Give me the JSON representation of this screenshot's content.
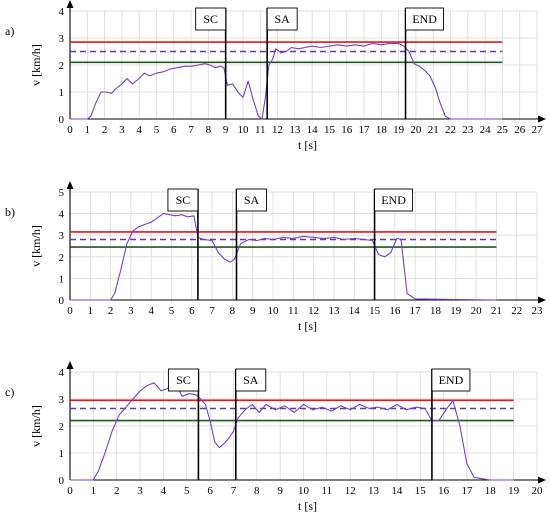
{
  "chart_data": [
    {
      "type": "line",
      "panel_label": "a)",
      "ylabel": "v [km/h]",
      "xlabel": "t [s]",
      "xlim": [
        0,
        27
      ],
      "ylim": [
        0,
        4
      ],
      "xticks": [
        "0",
        "1",
        "2",
        "3",
        "4",
        "5",
        "6",
        "7",
        "8",
        "9",
        "10",
        "11",
        "12",
        "13",
        "14",
        "15",
        "16",
        "17",
        "18",
        "19",
        "20",
        "21",
        "22",
        "23",
        "24",
        "25",
        "26",
        "27"
      ],
      "yticks": [
        "0",
        "1",
        "2",
        "3",
        "4"
      ],
      "grid": true,
      "hlines": [
        {
          "y": 2.85,
          "x_end": 25,
          "color": "#e8151b",
          "style": "solid"
        },
        {
          "y": 2.5,
          "x_end": 25,
          "color": "#5a3ea8",
          "style": "dashed"
        },
        {
          "y": 2.1,
          "x_end": 25,
          "color": "#1f5c19",
          "style": "solid"
        }
      ],
      "markers": [
        {
          "label": "SC",
          "x": 9.0
        },
        {
          "label": "SA",
          "x": 11.4
        },
        {
          "label": "END",
          "x": 19.4
        }
      ],
      "series": [
        {
          "color": "#7a3ec4",
          "x": [
            0,
            1,
            1.2,
            1.5,
            1.8,
            2.1,
            2.4,
            2.7,
            3.0,
            3.3,
            3.6,
            4.0,
            4.3,
            4.6,
            5.0,
            5.4,
            5.8,
            6.2,
            6.6,
            7.0,
            7.4,
            7.8,
            8.1,
            8.4,
            8.7,
            8.9,
            9.1,
            9.4,
            9.7,
            10.0,
            10.3,
            10.6,
            10.9,
            11.1,
            11.3,
            11.5,
            11.7,
            11.9,
            12.2,
            12.5,
            12.8,
            13.2,
            13.6,
            14.0,
            14.5,
            15.0,
            15.5,
            16.0,
            16.5,
            17.0,
            17.5,
            18.0,
            18.5,
            19.0,
            19.3,
            19.6,
            19.9,
            20.2,
            20.5,
            20.8,
            21.1,
            21.4,
            21.7,
            22.0,
            25.0
          ],
          "y": [
            0,
            0,
            0.1,
            0.6,
            1.0,
            1.0,
            0.95,
            1.15,
            1.3,
            1.5,
            1.3,
            1.5,
            1.7,
            1.6,
            1.7,
            1.75,
            1.85,
            1.9,
            1.95,
            1.95,
            2.0,
            2.05,
            2.0,
            1.9,
            1.95,
            1.9,
            1.25,
            1.3,
            1.0,
            0.8,
            1.4,
            0.7,
            0.1,
            0.0,
            0.8,
            2.0,
            2.2,
            2.6,
            2.45,
            2.5,
            2.65,
            2.6,
            2.65,
            2.7,
            2.65,
            2.7,
            2.75,
            2.7,
            2.75,
            2.7,
            2.8,
            2.75,
            2.8,
            2.8,
            2.7,
            2.5,
            2.05,
            1.95,
            1.8,
            1.6,
            1.2,
            0.6,
            0.1,
            0.0,
            0.0
          ]
        }
      ]
    },
    {
      "type": "line",
      "panel_label": "b)",
      "ylabel": "v [km/h]",
      "xlabel": "t [s]",
      "xlim": [
        0,
        23
      ],
      "ylim": [
        0,
        5
      ],
      "xticks": [
        "0",
        "1",
        "2",
        "3",
        "4",
        "5",
        "6",
        "7",
        "8",
        "9",
        "10",
        "11",
        "12",
        "13",
        "14",
        "15",
        "16",
        "17",
        "18",
        "19",
        "20",
        "21",
        "22",
        "23"
      ],
      "yticks": [
        "0",
        "1",
        "2",
        "3",
        "4",
        "5"
      ],
      "grid": true,
      "hlines": [
        {
          "y": 3.15,
          "x_end": 21,
          "color": "#e8151b",
          "style": "solid"
        },
        {
          "y": 2.8,
          "x_end": 21,
          "color": "#5a3ea8",
          "style": "dashed"
        },
        {
          "y": 2.45,
          "x_end": 21,
          "color": "#1f5c19",
          "style": "solid"
        }
      ],
      "markers": [
        {
          "label": "SC",
          "x": 6.3
        },
        {
          "label": "SA",
          "x": 8.2
        },
        {
          "label": "END",
          "x": 15.0
        }
      ],
      "series": [
        {
          "color": "#7a3ec4",
          "x": [
            0,
            2.0,
            2.2,
            2.5,
            2.8,
            3.1,
            3.4,
            3.7,
            4.0,
            4.3,
            4.6,
            4.9,
            5.2,
            5.5,
            5.8,
            6.1,
            6.3,
            6.6,
            7.0,
            7.3,
            7.6,
            7.9,
            8.1,
            8.4,
            8.8,
            9.2,
            9.6,
            10.0,
            10.5,
            11.0,
            11.5,
            12.0,
            12.5,
            13.0,
            13.5,
            14.0,
            14.5,
            14.9,
            15.2,
            15.5,
            15.8,
            16.1,
            16.3,
            16.6,
            17.0,
            21.0
          ],
          "y": [
            0,
            0,
            0.3,
            1.4,
            2.6,
            3.2,
            3.4,
            3.5,
            3.6,
            3.8,
            4.0,
            3.95,
            3.9,
            3.95,
            3.85,
            3.9,
            2.9,
            2.8,
            2.75,
            2.2,
            1.9,
            1.75,
            1.9,
            2.6,
            2.8,
            2.75,
            2.85,
            2.8,
            2.9,
            2.85,
            2.95,
            2.9,
            2.85,
            2.9,
            2.8,
            2.85,
            2.8,
            2.75,
            2.1,
            2.0,
            2.2,
            2.85,
            2.8,
            0.3,
            0.05,
            0.0
          ]
        }
      ]
    },
    {
      "type": "line",
      "panel_label": "c)",
      "ylabel": "v [km/h]",
      "xlabel": "t [s]",
      "xlim": [
        0,
        20
      ],
      "ylim": [
        0,
        4
      ],
      "xticks": [
        "0",
        "1",
        "2",
        "3",
        "4",
        "5",
        "6",
        "7",
        "8",
        "9",
        "10",
        "11",
        "12",
        "13",
        "14",
        "15",
        "16",
        "17",
        "18",
        "19",
        "20"
      ],
      "yticks": [
        "0",
        "1",
        "2",
        "3",
        "4"
      ],
      "grid": true,
      "hlines": [
        {
          "y": 2.95,
          "x_end": 19,
          "color": "#e8151b",
          "style": "solid"
        },
        {
          "y": 2.65,
          "x_end": 19,
          "color": "#5a3ea8",
          "style": "dashed"
        },
        {
          "y": 2.2,
          "x_end": 19,
          "color": "#1f5c19",
          "style": "solid"
        }
      ],
      "markers": [
        {
          "label": "SC",
          "x": 5.5
        },
        {
          "label": "SA",
          "x": 7.1
        },
        {
          "label": "END",
          "x": 15.5
        }
      ],
      "series": [
        {
          "color": "#7a3ec4",
          "x": [
            0,
            1.0,
            1.2,
            1.5,
            1.8,
            2.1,
            2.4,
            2.7,
            3.0,
            3.3,
            3.6,
            3.9,
            4.2,
            4.5,
            4.8,
            5.1,
            5.4,
            5.6,
            5.8,
            6.0,
            6.2,
            6.4,
            6.6,
            6.8,
            7.0,
            7.2,
            7.5,
            7.8,
            8.1,
            8.4,
            8.8,
            9.2,
            9.6,
            10.0,
            10.4,
            10.8,
            11.2,
            11.6,
            12.0,
            12.4,
            12.8,
            13.2,
            13.6,
            14.0,
            14.4,
            14.8,
            15.2,
            15.5,
            15.8,
            16.1,
            16.4,
            16.7,
            17.0,
            17.3,
            17.6,
            18.0,
            19.0
          ],
          "y": [
            0,
            0,
            0.3,
            1.0,
            1.8,
            2.4,
            2.7,
            3.0,
            3.3,
            3.5,
            3.6,
            3.3,
            3.4,
            3.6,
            3.1,
            3.2,
            3.15,
            3.0,
            2.8,
            2.2,
            1.4,
            1.2,
            1.35,
            1.55,
            1.8,
            2.3,
            2.6,
            2.8,
            2.5,
            2.8,
            2.6,
            2.75,
            2.5,
            2.8,
            2.6,
            2.7,
            2.55,
            2.75,
            2.6,
            2.8,
            2.65,
            2.7,
            2.6,
            2.8,
            2.6,
            2.7,
            2.65,
            2.2,
            2.2,
            2.6,
            2.95,
            2.0,
            0.6,
            0.1,
            0.05,
            0.0,
            0.0
          ]
        }
      ]
    }
  ]
}
